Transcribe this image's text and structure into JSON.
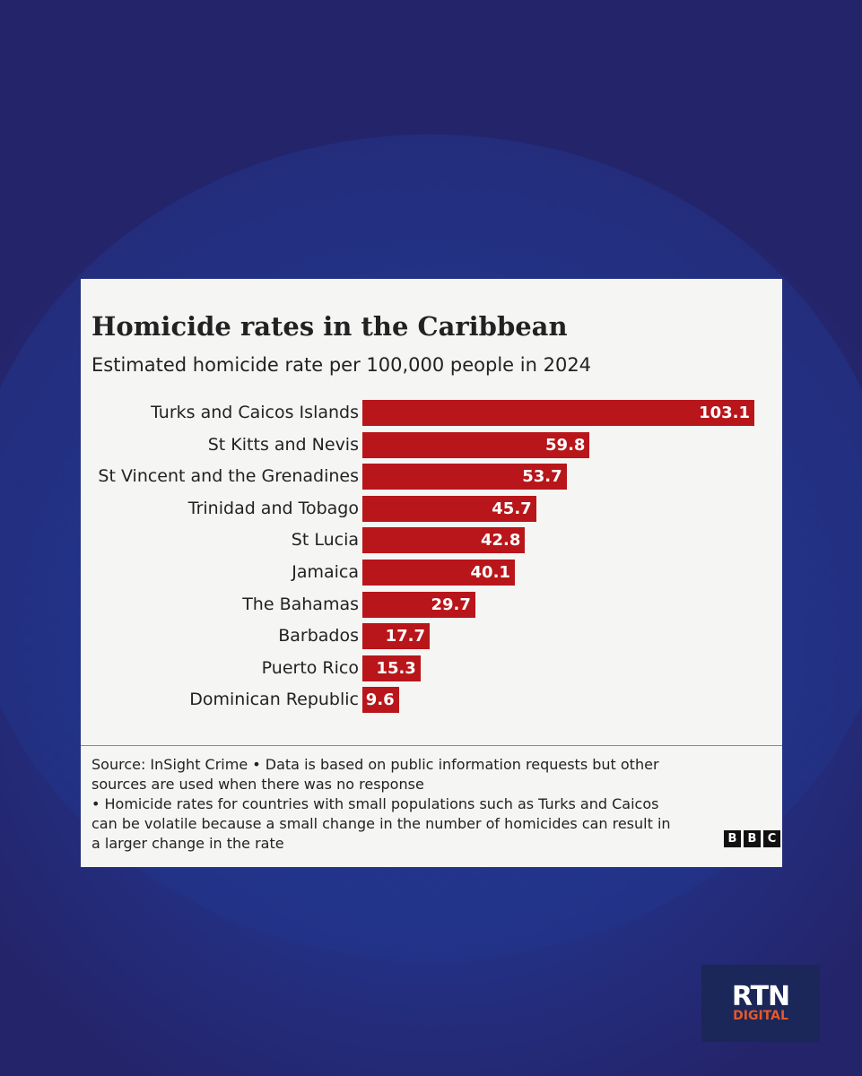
{
  "chart_data": {
    "type": "bar",
    "orientation": "horizontal",
    "title": "Homicide rates in the Caribbean",
    "subtitle": "Estimated homicide rate per 100,000 people in 2024",
    "categories": [
      "Turks and Caicos Islands",
      "St Kitts and Nevis",
      "St Vincent and the Grenadines",
      "Trinidad and Tobago",
      "St Lucia",
      "Jamaica",
      "The Bahamas",
      "Barbados",
      "Puerto Rico",
      "Dominican Republic"
    ],
    "values": [
      103.1,
      59.8,
      53.7,
      45.7,
      42.8,
      40.1,
      29.7,
      17.7,
      15.3,
      9.6
    ],
    "bar_color": "#b8161a",
    "value_labels": "inside-end",
    "grid": false
  },
  "source_lines": [
    "Source: InSight Crime • Data is based on public information requests but other",
    "sources are used when there was no response",
    "• Homicide rates for countries with small populations such as Turks and Caicos",
    "can be volatile because a small change in the number of homicides can result in",
    "a larger change in the rate"
  ],
  "bbc_logo": [
    "B",
    "B",
    "C"
  ],
  "rtn_logo": {
    "top": "RTN",
    "bottom": "DIGITAL",
    "accent_color": "#e3592a"
  }
}
